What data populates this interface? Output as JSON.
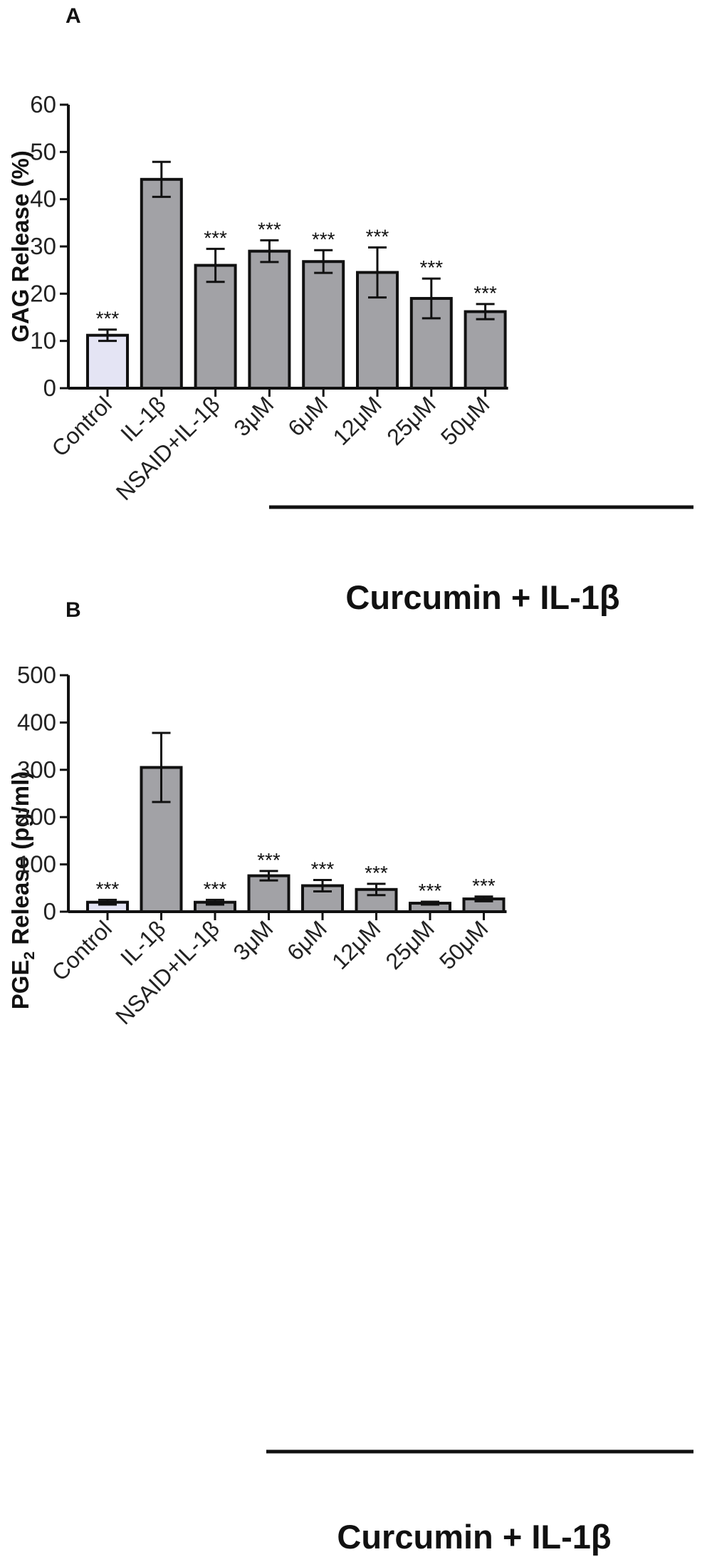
{
  "panels": [
    {
      "panel_label": "A",
      "ylabel": "GAG Release (%)",
      "group_label": "Curcumin + IL-1β",
      "yticks": [
        "0",
        "10",
        "20",
        "30",
        "40",
        "50",
        "60"
      ]
    },
    {
      "panel_label": "B",
      "ylabel_main": "PGE",
      "ylabel_sub": "2",
      "ylabel_rest": " Release (pg/ml)",
      "group_label": "Curcumin + IL-1β",
      "yticks": [
        "0",
        "100",
        "200",
        "300",
        "400",
        "500"
      ]
    }
  ],
  "colors": {
    "control": "#e4e4f4",
    "treated": "#a2a2a6",
    "stroke": "#111111"
  },
  "chart_data": [
    {
      "type": "bar",
      "title": "",
      "ylabel": "GAG Release (%)",
      "ylim": [
        0,
        60
      ],
      "categories": [
        "Control",
        "IL-1β",
        "NSAID+IL-1β",
        "3μM",
        "6μM",
        "12μM",
        "25μM",
        "50μM"
      ],
      "values": [
        11.2,
        44.2,
        26.0,
        29.0,
        26.8,
        24.5,
        19.0,
        16.2
      ],
      "errors": [
        1.2,
        3.7,
        3.5,
        2.3,
        2.4,
        5.3,
        4.2,
        1.6
      ],
      "significance": [
        "***",
        "",
        "***",
        "***",
        "***",
        "***",
        "***",
        "***"
      ],
      "group_label": "Curcumin + IL-1β"
    },
    {
      "type": "bar",
      "title": "",
      "ylabel": "PGE2 Release (pg/ml)",
      "ylim": [
        0,
        500
      ],
      "categories": [
        "Control",
        "IL-1β",
        "NSAID+IL-1β",
        "3μM",
        "6μM",
        "12μM",
        "25μM",
        "50μM"
      ],
      "values": [
        20,
        305,
        20,
        76,
        55,
        47,
        18,
        27
      ],
      "errors": [
        5,
        73,
        5,
        10,
        12,
        12,
        3,
        5
      ],
      "significance": [
        "***",
        "",
        "***",
        "***",
        "***",
        "***",
        "***",
        "***"
      ],
      "group_label": "Curcumin + IL-1β"
    }
  ]
}
